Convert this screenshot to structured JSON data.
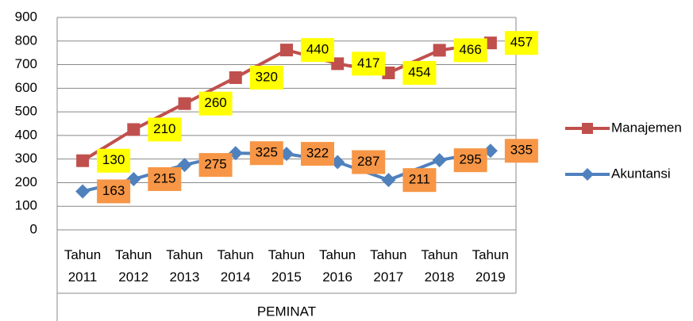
{
  "chart_data": {
    "type": "line",
    "stacked": true,
    "categories": [
      "Tahun 2011",
      "Tahun 2012",
      "Tahun 2013",
      "Tahun 2014",
      "Tahun 2015",
      "Tahun 2016",
      "Tahun 2017",
      "Tahun 2018",
      "Tahun 2019"
    ],
    "series": [
      {
        "name": "Akuntansi",
        "color": "#4f81bd",
        "marker": "diamond",
        "label_color": "#f79646",
        "values": [
          163,
          215,
          275,
          325,
          322,
          287,
          211,
          295,
          335
        ]
      },
      {
        "name": "Manajemen",
        "color": "#c0504d",
        "marker": "square",
        "label_color": "#ffff00",
        "values": [
          130,
          210,
          260,
          320,
          440,
          417,
          454,
          466,
          457
        ]
      }
    ],
    "x_label": "PEMINAT",
    "ylim": [
      0,
      900
    ],
    "yticks": [
      0,
      100,
      200,
      300,
      400,
      500,
      600,
      700,
      800,
      900
    ],
    "grid": true,
    "legend": "right"
  }
}
